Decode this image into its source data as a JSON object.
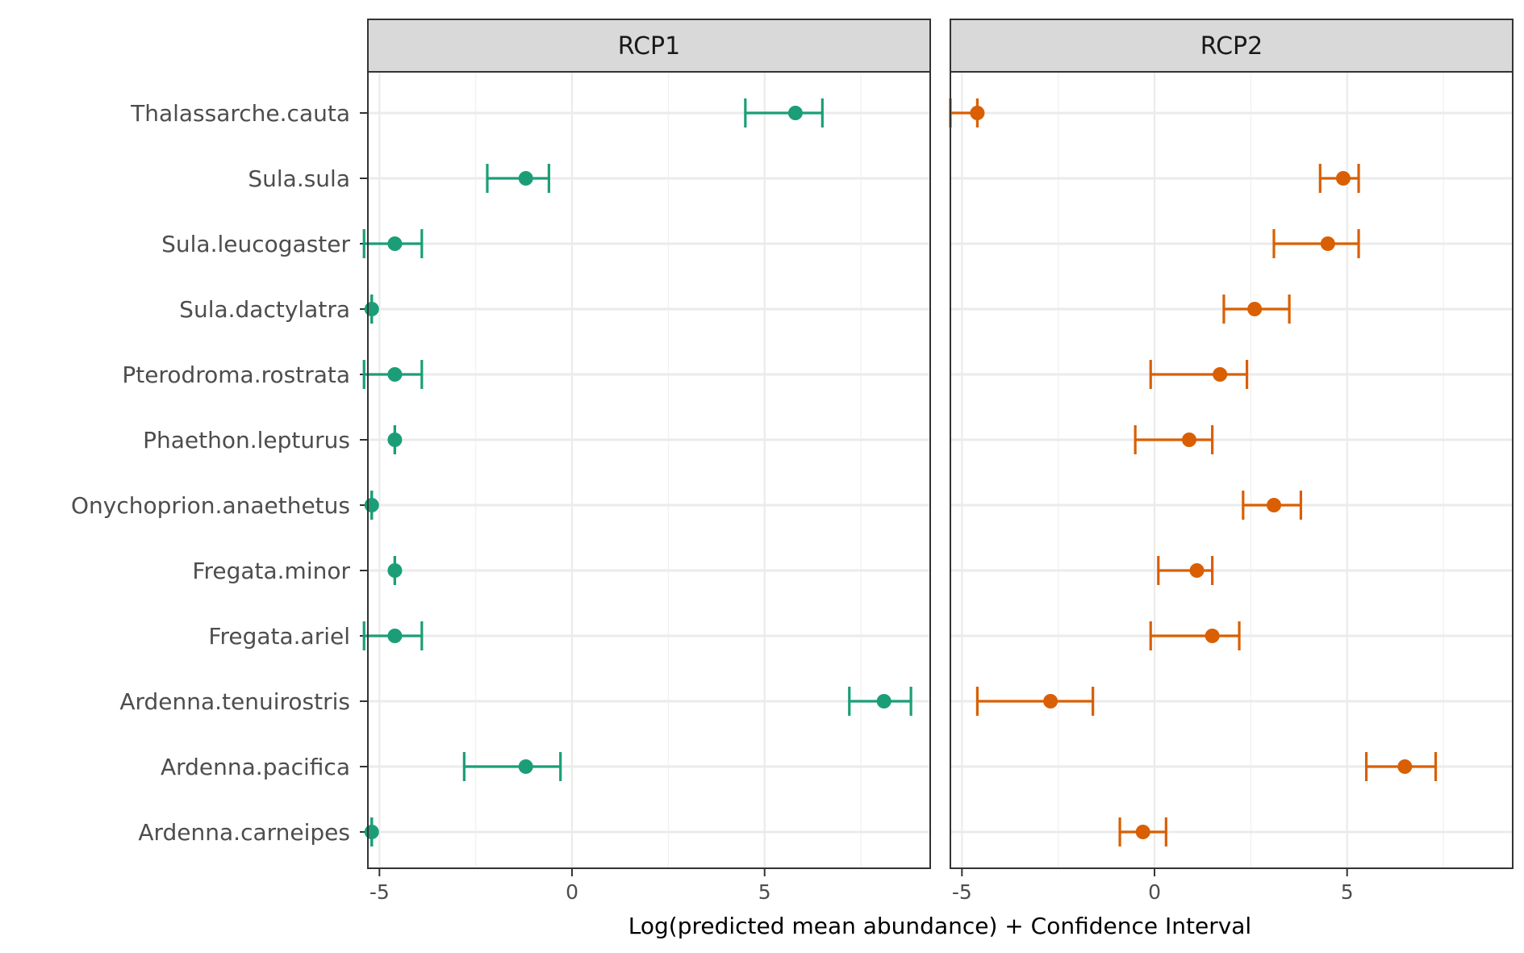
{
  "chart_data": {
    "type": "errorbar",
    "title": "",
    "xlabel": "Log(predicted mean abundance) + Confidence Interval",
    "ylabel": "",
    "xlim": [
      -5.3,
      9.3
    ],
    "x_ticks": [
      -5,
      0,
      5
    ],
    "x_tick_labels": [
      "-5",
      "0",
      "5"
    ],
    "categories": [
      "Thalassarche.cauta",
      "Sula.sula",
      "Sula.leucogaster",
      "Sula.dactylatra",
      "Pterodroma.rostrata",
      "Phaethon.lepturus",
      "Onychoprion.anaethetus",
      "Fregata.minor",
      "Fregata.ariel",
      "Ardenna.tenuirostris",
      "Ardenna.pacifica",
      "Ardenna.carneipes"
    ],
    "panels": [
      {
        "name": "RCP1",
        "color": "#1b9e77",
        "estimates": [
          5.8,
          -1.2,
          -4.6,
          -5.2,
          -4.6,
          -4.6,
          -5.2,
          -4.6,
          -4.6,
          8.1,
          -1.2,
          -5.2
        ],
        "lower": [
          4.5,
          -2.2,
          -5.4,
          -5.2,
          -5.4,
          -4.6,
          -5.2,
          -4.6,
          -5.4,
          7.2,
          -2.8,
          -5.2
        ],
        "upper": [
          6.5,
          -0.6,
          -3.9,
          -5.2,
          -3.9,
          -4.6,
          -5.2,
          -4.6,
          -3.9,
          8.8,
          -0.3,
          -5.2
        ]
      },
      {
        "name": "RCP2",
        "color": "#d95f02",
        "estimates": [
          -4.6,
          4.9,
          4.5,
          2.6,
          1.7,
          0.9,
          3.1,
          1.1,
          1.5,
          -2.7,
          6.5,
          -0.3
        ],
        "lower": [
          -5.3,
          4.3,
          3.1,
          1.8,
          -0.1,
          -0.5,
          2.3,
          0.1,
          -0.1,
          -4.6,
          5.5,
          -0.9
        ],
        "upper": [
          -4.6,
          5.3,
          5.3,
          3.5,
          2.4,
          1.5,
          3.8,
          1.5,
          2.2,
          -1.6,
          7.3,
          0.3
        ]
      }
    ]
  }
}
